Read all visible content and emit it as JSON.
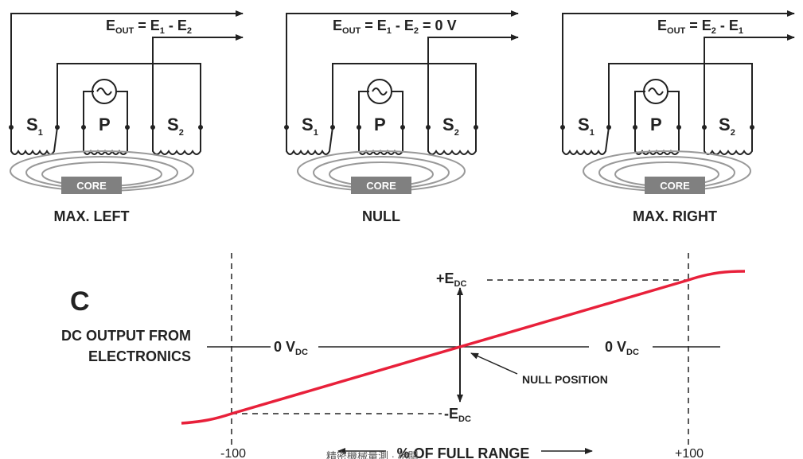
{
  "panels": [
    {
      "title": "MAX. LEFT",
      "eout": {
        "lhs": "E",
        "lhs_sub": "OUT",
        "eq": " = E",
        "t1_sub": "1",
        "minus": " - E",
        "t2_sub": "2",
        "tail": ""
      },
      "coils": {
        "s1": "S",
        "s1_sub": "1",
        "p": "P",
        "s2": "S",
        "s2_sub": "2"
      },
      "core": "CORE"
    },
    {
      "title": "NULL",
      "eout": {
        "lhs": "E",
        "lhs_sub": "OUT",
        "eq": " = E",
        "t1_sub": "1",
        "minus": " - E",
        "t2_sub": "2",
        "tail": " = 0 V"
      },
      "coils": {
        "s1": "S",
        "s1_sub": "1",
        "p": "P",
        "s2": "S",
        "s2_sub": "2"
      },
      "core": "CORE"
    },
    {
      "title": "MAX. RIGHT",
      "eout": {
        "lhs": "E",
        "lhs_sub": "OUT",
        "eq": " = E",
        "t1_sub": "2",
        "minus": " - E",
        "t2_sub": "1",
        "tail": ""
      },
      "coils": {
        "s1": "S",
        "s1_sub": "1",
        "p": "P",
        "s2": "S",
        "s2_sub": "2"
      },
      "core": "CORE"
    }
  ],
  "graph": {
    "letter": "C",
    "ylabel_line1": "DC OUTPUT FROM",
    "ylabel_line2": "ELECTRONICS",
    "zero_left": "0 V",
    "zero_left_sub": "DC",
    "zero_right": "0 V",
    "zero_right_sub": "DC",
    "plus": "+E",
    "plus_sub": "DC",
    "minus": "-E",
    "minus_sub": "DC",
    "null_label": "NULL POSITION",
    "x_min_label": "-100",
    "x_max_label": "+100",
    "x_axis_label": "% OF FULL RANGE",
    "watermark": "精密機械量測 · 相關"
  },
  "colors": {
    "line": "#222222",
    "curve": "#e8203a",
    "core": "#808080"
  }
}
